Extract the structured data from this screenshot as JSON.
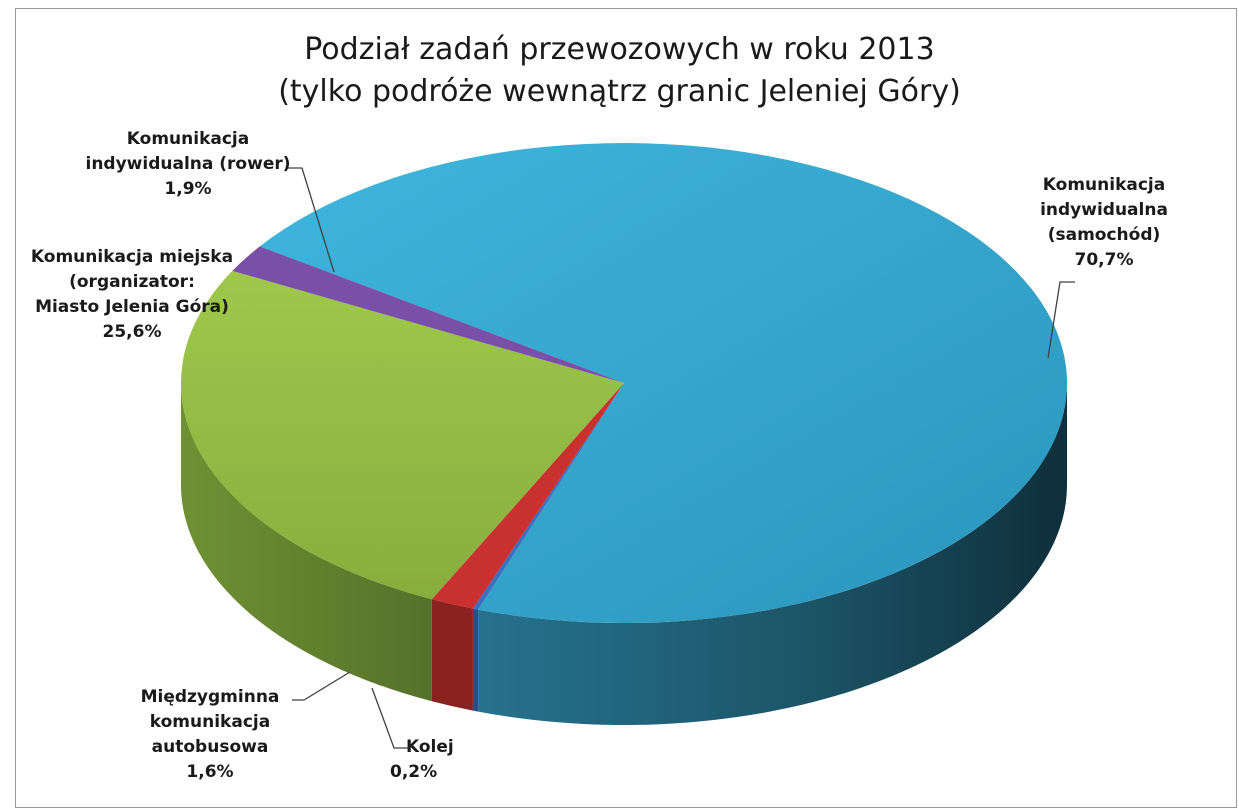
{
  "chart_data": {
    "type": "pie",
    "title": "Podział zadań przewozowych w roku 2013",
    "subtitle": "(tylko podróże wewnątrz granic Jeleniej Góry)",
    "slices": [
      {
        "label_lines": [
          "Komunikacja",
          "indywidualna",
          "(samochód)"
        ],
        "value": 70.7,
        "value_label": "70,7%",
        "color": "#36a9d1"
      },
      {
        "label_lines": [
          "Kolej"
        ],
        "value": 0.2,
        "value_label": "0,2%",
        "color": "#3b6fbf"
      },
      {
        "label_lines": [
          "Międzygminna",
          "komunikacja",
          "autobusowa"
        ],
        "value": 1.6,
        "value_label": "1,6%",
        "color": "#c8312f"
      },
      {
        "label_lines": [
          "Komunikacja miejska",
          "(organizator:",
          "Miasto Jelenia Góra)"
        ],
        "value": 25.6,
        "value_label": "25,6%",
        "color": "#94bd45"
      },
      {
        "label_lines": [
          "Komunikacja",
          "indywidualna (rower)"
        ],
        "value": 1.9,
        "value_label": "1,9%",
        "color": "#7a4fa8"
      }
    ],
    "style": "3d-pie",
    "legend": "none"
  }
}
